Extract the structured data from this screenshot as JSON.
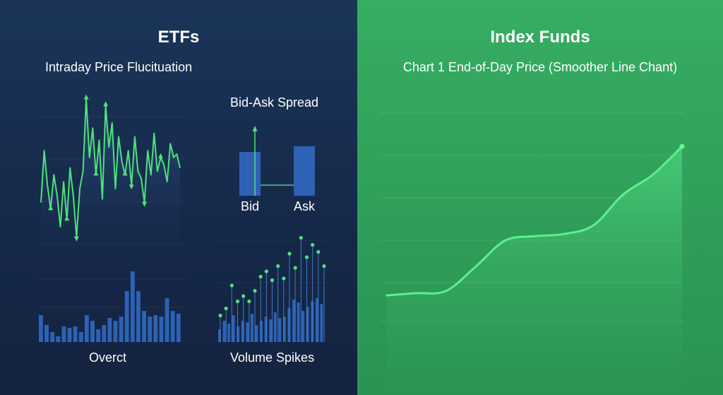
{
  "left": {
    "title": "ETFs",
    "intraday_label": "Intraday Price Flucituation",
    "bid_ask_label": "Bid-Ask Spread",
    "bid_label": "Bid",
    "ask_label": "Ask",
    "overct_label": "Overct",
    "volume_label": "Volume Spikes"
  },
  "right": {
    "title": "Index Funds",
    "chart_label": "Chart 1 End-of-Day Price (Smoother Line Chant)"
  },
  "colors": {
    "left_bg": "#1b3558",
    "right_bg": "#34a560",
    "line_green": "#4ee27a",
    "bar_blue": "#2d62b5"
  },
  "chart_data": [
    {
      "id": "intraday",
      "type": "line",
      "title": "Intraday Price Flucituation",
      "values": [
        32,
        62,
        42,
        28,
        48,
        36,
        18,
        44,
        22,
        52,
        36,
        12,
        40,
        50,
        92,
        58,
        75,
        48,
        68,
        34,
        88,
        64,
        78,
        40,
        70,
        56,
        48,
        62,
        42,
        70,
        50,
        46,
        32,
        62,
        48,
        72,
        50,
        58,
        54,
        44,
        66,
        58,
        60,
        52
      ],
      "arrow_up_indices": [
        3,
        8,
        14,
        17,
        20,
        26,
        37
      ],
      "arrow_down_indices": [
        11,
        28,
        32
      ],
      "ylim": [
        0,
        100
      ]
    },
    {
      "id": "bid_ask",
      "type": "bar",
      "title": "Bid-Ask Spread",
      "categories": [
        "Bid",
        "Ask"
      ],
      "values": [
        62,
        70
      ],
      "ylim": [
        0,
        100
      ]
    },
    {
      "id": "overct",
      "type": "bar",
      "title": "Overct",
      "values": [
        38,
        24,
        14,
        8,
        22,
        20,
        22,
        14,
        38,
        30,
        18,
        24,
        34,
        30,
        36,
        72,
        100,
        72,
        44,
        36,
        38,
        36,
        62,
        44,
        40
      ],
      "ylim": [
        0,
        100
      ]
    },
    {
      "id": "volume",
      "type": "bar",
      "title": "Volume Spikes",
      "values": [
        18,
        30,
        26,
        38,
        22,
        30,
        28,
        40,
        24,
        30,
        36,
        32,
        42,
        34,
        36,
        48,
        60,
        56,
        44,
        50,
        58,
        62,
        54
      ],
      "spikes": [
        30,
        38,
        64,
        46,
        52,
        46,
        58,
        74,
        80,
        70,
        86,
        72,
        100,
        84,
        118,
        96,
        110,
        102,
        86
      ],
      "ylim": [
        0,
        100
      ]
    },
    {
      "id": "end_of_day",
      "type": "area",
      "title": "Chart 1 End-of-Day Price (Smoother Line Chant)",
      "x": [
        0,
        1,
        2,
        3,
        4,
        5,
        6,
        7,
        8,
        9,
        10
      ],
      "values": [
        20,
        21,
        22,
        33,
        45,
        47,
        48,
        52,
        66,
        75,
        88
      ],
      "ylim": [
        0,
        120
      ],
      "grid": true
    }
  ]
}
